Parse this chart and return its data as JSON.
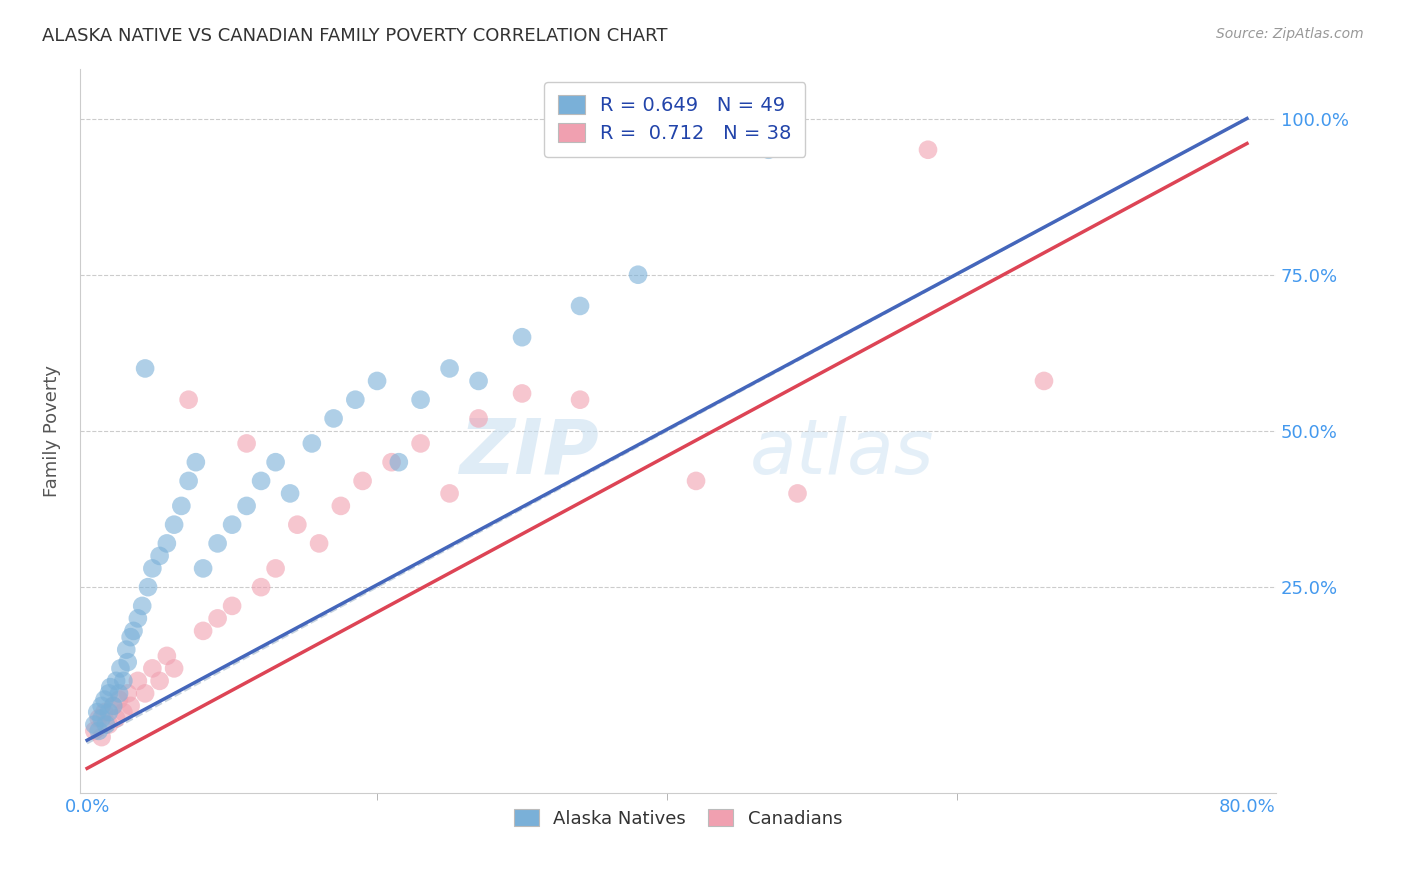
{
  "title": "ALASKA NATIVE VS CANADIAN FAMILY POVERTY CORRELATION CHART",
  "source": "Source: ZipAtlas.com",
  "ylabel": "Family Poverty",
  "x_tick_labels_shown": [
    "0.0%",
    "80.0%"
  ],
  "x_tick_values_shown": [
    0.0,
    0.8
  ],
  "x_tick_minor": [
    0.2,
    0.4,
    0.6
  ],
  "y_tick_labels": [
    "25.0%",
    "50.0%",
    "75.0%",
    "100.0%"
  ],
  "y_tick_values": [
    0.25,
    0.5,
    0.75,
    1.0
  ],
  "xlim": [
    -0.005,
    0.82
  ],
  "ylim": [
    -0.08,
    1.08
  ],
  "alaska_R": 0.649,
  "alaska_N": 49,
  "canadian_R": 0.712,
  "canadian_N": 38,
  "alaska_color": "#7ab0d8",
  "canadian_color": "#f0a0b0",
  "trend_alaska_color": "#4466bb",
  "trend_canadian_color": "#dd4455",
  "diagonal_color": "#b8c8d8",
  "watermark_zip": "ZIP",
  "watermark_atlas": "atlas",
  "legend_alaska": "Alaska Natives",
  "legend_canadian": "Canadians",
  "alaska_points_x": [
    0.005,
    0.007,
    0.008,
    0.01,
    0.01,
    0.012,
    0.013,
    0.015,
    0.015,
    0.016,
    0.018,
    0.02,
    0.022,
    0.023,
    0.025,
    0.027,
    0.028,
    0.03,
    0.032,
    0.035,
    0.038,
    0.04,
    0.042,
    0.045,
    0.05,
    0.055,
    0.06,
    0.065,
    0.07,
    0.075,
    0.08,
    0.09,
    0.1,
    0.11,
    0.12,
    0.13,
    0.14,
    0.155,
    0.17,
    0.185,
    0.2,
    0.215,
    0.23,
    0.25,
    0.27,
    0.3,
    0.34,
    0.38,
    0.47
  ],
  "alaska_points_y": [
    0.03,
    0.05,
    0.02,
    0.04,
    0.06,
    0.07,
    0.03,
    0.08,
    0.05,
    0.09,
    0.06,
    0.1,
    0.08,
    0.12,
    0.1,
    0.15,
    0.13,
    0.17,
    0.18,
    0.2,
    0.22,
    0.6,
    0.25,
    0.28,
    0.3,
    0.32,
    0.35,
    0.38,
    0.42,
    0.45,
    0.28,
    0.32,
    0.35,
    0.38,
    0.42,
    0.45,
    0.4,
    0.48,
    0.52,
    0.55,
    0.58,
    0.45,
    0.55,
    0.6,
    0.58,
    0.65,
    0.7,
    0.75,
    0.95
  ],
  "canadian_points_x": [
    0.005,
    0.008,
    0.01,
    0.012,
    0.015,
    0.018,
    0.02,
    0.022,
    0.025,
    0.028,
    0.03,
    0.035,
    0.04,
    0.045,
    0.05,
    0.055,
    0.06,
    0.07,
    0.08,
    0.09,
    0.1,
    0.11,
    0.12,
    0.13,
    0.145,
    0.16,
    0.175,
    0.19,
    0.21,
    0.23,
    0.25,
    0.27,
    0.3,
    0.34,
    0.42,
    0.49,
    0.58,
    0.66
  ],
  "canadian_points_y": [
    0.02,
    0.04,
    0.01,
    0.05,
    0.03,
    0.06,
    0.04,
    0.07,
    0.05,
    0.08,
    0.06,
    0.1,
    0.08,
    0.12,
    0.1,
    0.14,
    0.12,
    0.55,
    0.18,
    0.2,
    0.22,
    0.48,
    0.25,
    0.28,
    0.35,
    0.32,
    0.38,
    0.42,
    0.45,
    0.48,
    0.4,
    0.52,
    0.56,
    0.55,
    0.42,
    0.4,
    0.95,
    0.58
  ],
  "trend_alaska_x0": 0.0,
  "trend_alaska_y0": 0.005,
  "trend_alaska_x1": 0.8,
  "trend_alaska_y1": 1.0,
  "trend_canadian_x0": 0.0,
  "trend_canadian_y0": -0.04,
  "trend_canadian_x1": 0.8,
  "trend_canadian_y1": 0.96
}
